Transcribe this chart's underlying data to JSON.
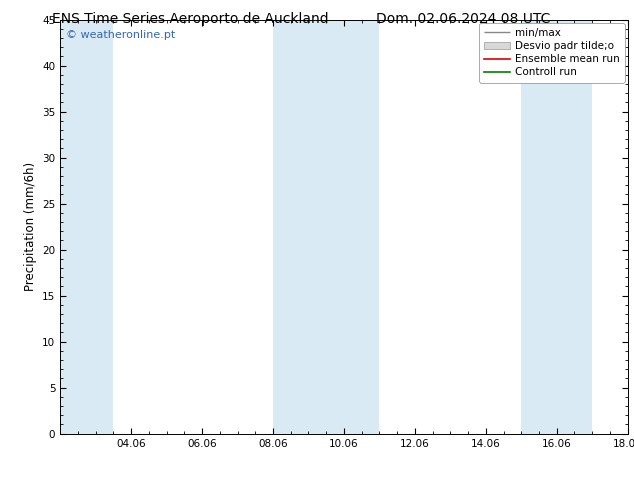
{
  "title_left": "ENS Time Series Aeroporto de Auckland",
  "title_right": "Dom. 02.06.2024 08 UTC",
  "ylabel": "Precipitation (mm/6h)",
  "ylim": [
    0,
    45
  ],
  "yticks": [
    0,
    5,
    10,
    15,
    20,
    25,
    30,
    35,
    40,
    45
  ],
  "xlim": [
    0,
    16
  ],
  "xtick_labels": [
    "04.06",
    "06.06",
    "08.06",
    "10.06",
    "12.06",
    "14.06",
    "16.06",
    "18.06"
  ],
  "xtick_positions": [
    2,
    4,
    6,
    8,
    10,
    12,
    14,
    16
  ],
  "blue_bands": [
    [
      0.0,
      1.5
    ],
    [
      6.0,
      7.5
    ],
    [
      7.5,
      9.0
    ],
    [
      13.0,
      14.0
    ],
    [
      14.0,
      15.0
    ]
  ],
  "band_color": "#daeaf5",
  "background_color": "#ffffff",
  "plot_bg_color": "#ffffff",
  "legend_entries": [
    "min/max",
    "Desvio padr tilde;o",
    "Ensemble mean run",
    "Controll run"
  ],
  "watermark": "© weatheronline.pt",
  "watermark_color": "#3366bb",
  "title_fontsize": 10,
  "tick_fontsize": 7.5,
  "ylabel_fontsize": 8.5,
  "legend_fontsize": 7.5
}
